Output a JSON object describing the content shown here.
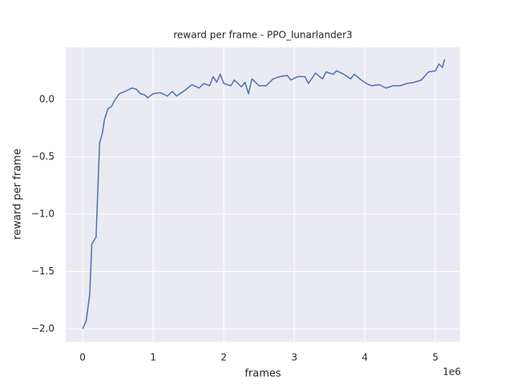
{
  "chart_data": {
    "type": "line",
    "title": "reward per frame - PPO_lunarlander3",
    "x_label": "frames",
    "y_label": "reward per frame",
    "x_offset_label": "1e6",
    "x": [
      0,
      50000,
      100000,
      130000,
      190000,
      240000,
      280000,
      310000,
      360000,
      410000,
      460000,
      520000,
      600000,
      700000,
      760000,
      820000,
      880000,
      920000,
      1000000,
      1100000,
      1200000,
      1270000,
      1330000,
      1450000,
      1550000,
      1650000,
      1720000,
      1800000,
      1850000,
      1900000,
      1950000,
      2000000,
      2100000,
      2150000,
      2250000,
      2300000,
      2350000,
      2400000,
      2500000,
      2600000,
      2700000,
      2800000,
      2900000,
      2950000,
      3050000,
      3150000,
      3200000,
      3300000,
      3400000,
      3450000,
      3550000,
      3600000,
      3700000,
      3800000,
      3850000,
      3950000,
      4050000,
      4100000,
      4200000,
      4300000,
      4400000,
      4500000,
      4600000,
      4700000,
      4800000,
      4900000,
      5000000,
      5050000,
      5100000,
      5130000
    ],
    "series": [
      {
        "color": "#4c72b0",
        "values": [
          -2.0,
          -1.93,
          -1.7,
          -1.26,
          -1.2,
          -0.38,
          -0.29,
          -0.17,
          -0.08,
          -0.06,
          0.0,
          0.05,
          0.07,
          0.1,
          0.09,
          0.05,
          0.04,
          0.015,
          0.05,
          0.06,
          0.03,
          0.07,
          0.03,
          0.08,
          0.13,
          0.1,
          0.14,
          0.12,
          0.2,
          0.15,
          0.22,
          0.14,
          0.12,
          0.17,
          0.11,
          0.15,
          0.05,
          0.18,
          0.12,
          0.12,
          0.18,
          0.2,
          0.21,
          0.17,
          0.2,
          0.2,
          0.14,
          0.23,
          0.18,
          0.24,
          0.22,
          0.25,
          0.22,
          0.18,
          0.22,
          0.17,
          0.13,
          0.12,
          0.13,
          0.1,
          0.12,
          0.12,
          0.14,
          0.15,
          0.17,
          0.24,
          0.25,
          0.31,
          0.28,
          0.35
        ]
      }
    ],
    "xlim": [
      -240000,
      5350000
    ],
    "xticks": [
      {
        "value": 0,
        "label": "0"
      },
      {
        "value": 1000000,
        "label": "1"
      },
      {
        "value": 2000000,
        "label": "2"
      },
      {
        "value": 3000000,
        "label": "3"
      },
      {
        "value": 4000000,
        "label": "4"
      },
      {
        "value": 5000000,
        "label": "5"
      }
    ],
    "ylim": [
      -2.112,
      0.455
    ],
    "yticks": [
      {
        "value": -2,
        "label": "−2.0"
      },
      {
        "value": -1.5,
        "label": "−1.5"
      },
      {
        "value": -1,
        "label": "−1.0"
      },
      {
        "value": -0.5,
        "label": "−0.5"
      },
      {
        "value": 0,
        "label": "0.0"
      }
    ],
    "grid": true
  }
}
